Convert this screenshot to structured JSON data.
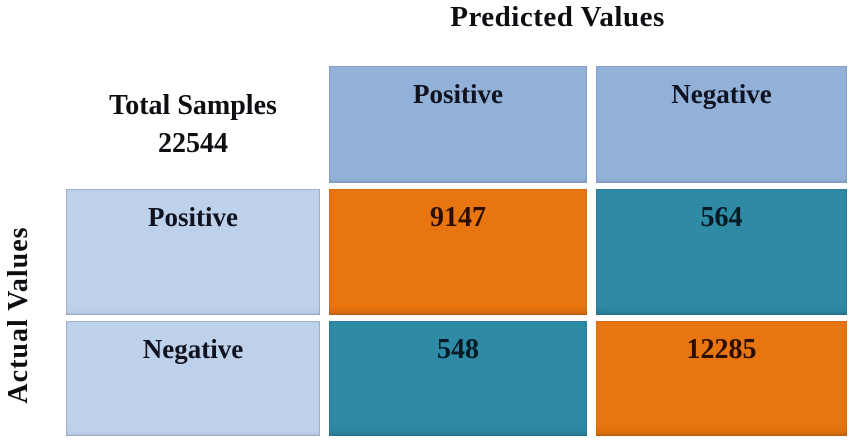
{
  "figure": {
    "title": "Predicted Values",
    "y_axis_label": "Actual Values",
    "corner_cell": {
      "line1": "Total Samples",
      "line2": "22544"
    },
    "column_headers": [
      "Positive",
      "Negative"
    ],
    "row_headers": [
      "Positive",
      "Negative"
    ],
    "cells": [
      [
        "9147",
        "564"
      ],
      [
        "548",
        "12285"
      ]
    ]
  },
  "colors": {
    "header_blue": "#92b1d8",
    "label_blue": "#bed1ea",
    "orange": "#e8750f",
    "teal": "#2e8aa5",
    "number_on_orange": "#2a0e03",
    "number_on_teal": "#081a23",
    "text_dark": "#0d0d12"
  },
  "chart_data": {
    "type": "heatmap",
    "title": "Predicted Values",
    "xlabel": "Predicted Values",
    "ylabel": "Actual Values",
    "total_samples": 22544,
    "categories": [
      "Positive",
      "Negative"
    ],
    "matrix": [
      [
        9147,
        564
      ],
      [
        548,
        12285
      ]
    ],
    "cell_color_pattern": [
      [
        "orange",
        "teal"
      ],
      [
        "teal",
        "orange"
      ]
    ],
    "legend": "none",
    "grid": "off"
  }
}
